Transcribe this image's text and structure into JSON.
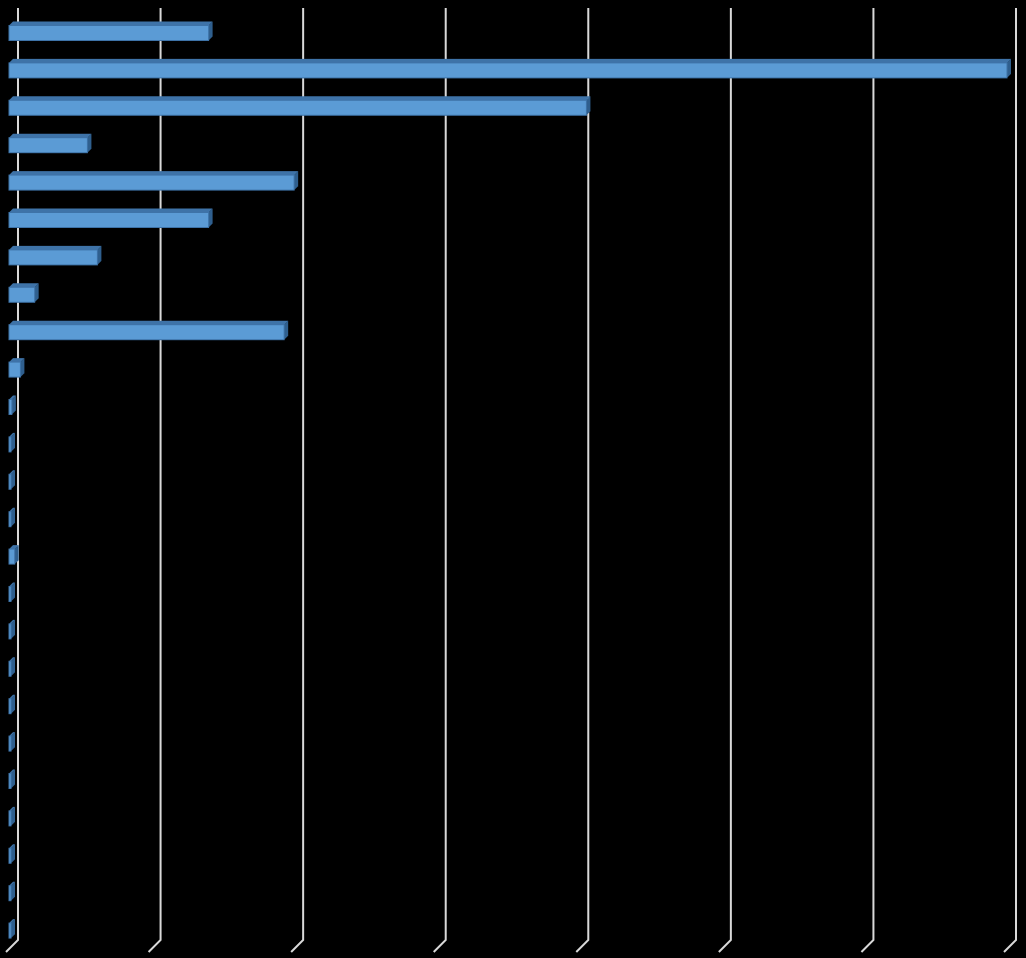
{
  "chart_data": {
    "type": "bar",
    "orientation": "horizontal",
    "style": "3d",
    "grid": true,
    "xlim": [
      0,
      7
    ],
    "categories": [
      "",
      "",
      "",
      "",
      "",
      "",
      "",
      "",
      "",
      "",
      "",
      "",
      "",
      "",
      "",
      "",
      "",
      "",
      "",
      "",
      "",
      "",
      "",
      "",
      ""
    ],
    "values": [
      1.4,
      7.0,
      4.05,
      0.55,
      2.0,
      1.4,
      0.62,
      0.18,
      1.93,
      0.08,
      0.02,
      0.01,
      0.01,
      0.01,
      0.04,
      0.01,
      0.01,
      0.01,
      0.01,
      0.01,
      0.01,
      0.01,
      0.01,
      0.01,
      0.01
    ],
    "colors": {
      "background": "#000000",
      "bar_front": "#5b9bd5",
      "bar_top": "#3e73a8",
      "bar_side": "#2f5f8e",
      "gridline": "#d9d9d9"
    }
  }
}
